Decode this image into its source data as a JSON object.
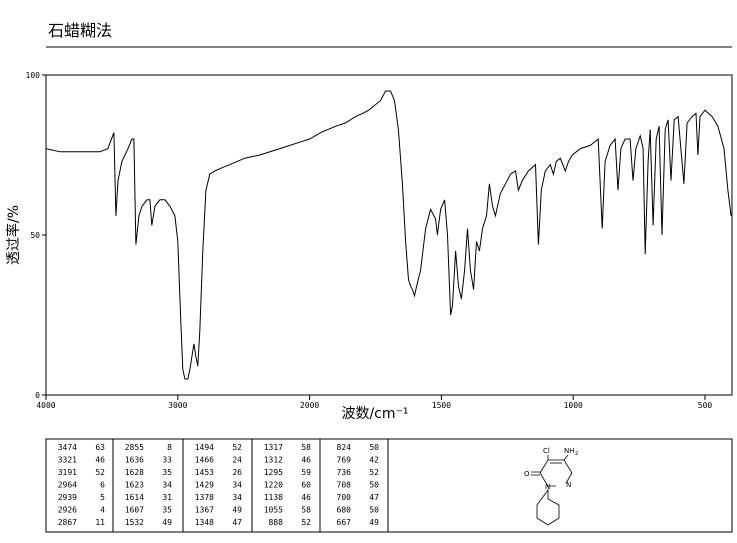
{
  "title": "石蜡糊法",
  "chart_data": {
    "type": "line",
    "x_label": "波数/cm⁻¹",
    "y_label": "透过率/%",
    "xlim": [
      4000,
      400
    ],
    "ylim": [
      0,
      100
    ],
    "xticks": [
      4000,
      3000,
      2000,
      1500,
      1000,
      500
    ],
    "yticks": [
      0,
      50,
      100
    ],
    "color": "#000000",
    "x": [
      4000,
      3894,
      3742,
      3591,
      3530,
      3485,
      3470,
      3454,
      3424,
      3378,
      3348,
      3333,
      3318,
      3295,
      3272,
      3234,
      3212,
      3197,
      3174,
      3136,
      3098,
      3060,
      3022,
      3000,
      2977,
      2962,
      2946,
      2924,
      2908,
      2893,
      2878,
      2863,
      2848,
      2833,
      2810,
      2787,
      2757,
      2719,
      2666,
      2605,
      2492,
      2378,
      2226,
      2075,
      2000,
      1958,
      1901,
      1864,
      1826,
      1799,
      1776,
      1761,
      1731,
      1712,
      1693,
      1678,
      1663,
      1648,
      1636,
      1625,
      1617,
      1610,
      1602,
      1594,
      1579,
      1560,
      1541,
      1522,
      1515,
      1503,
      1488,
      1477,
      1465,
      1458,
      1446,
      1435,
      1424,
      1412,
      1401,
      1390,
      1378,
      1367,
      1356,
      1344,
      1329,
      1318,
      1306,
      1295,
      1276,
      1257,
      1238,
      1219,
      1208,
      1193,
      1170,
      1143,
      1132,
      1121,
      1106,
      1087,
      1075,
      1064,
      1049,
      1030,
      1018,
      1003,
      973,
      935,
      905,
      890,
      879,
      860,
      841,
      830,
      819,
      803,
      784,
      773,
      762,
      746,
      735,
      727,
      716,
      708,
      697,
      685,
      674,
      663,
      651,
      640,
      629,
      617,
      602,
      580,
      568,
      549,
      534,
      527,
      519,
      500,
      473,
      451,
      428,
      413,
      401
    ],
    "values": [
      77,
      76,
      76,
      76,
      77,
      82,
      56,
      67,
      73,
      77,
      80,
      80,
      47,
      56,
      59,
      61,
      61,
      53,
      59,
      61,
      61,
      59,
      56,
      48,
      23,
      8,
      5,
      5,
      8,
      12,
      16,
      12,
      9,
      20,
      45,
      64,
      69,
      70,
      71,
      72,
      74,
      75,
      77,
      79,
      80,
      82,
      84,
      85,
      87,
      88,
      89,
      90,
      92,
      95,
      95,
      92,
      83,
      66,
      48,
      36,
      34,
      33,
      31,
      34,
      39,
      52,
      58,
      55,
      50,
      58,
      61,
      50,
      25,
      28,
      45,
      34,
      30,
      39,
      52,
      39,
      33,
      48,
      45,
      52,
      56,
      66,
      59,
      56,
      63,
      66,
      69,
      70,
      64,
      67,
      70,
      72,
      47,
      64,
      70,
      72,
      69,
      73,
      74,
      70,
      73,
      75,
      77,
      78,
      80,
      52,
      73,
      78,
      80,
      64,
      77,
      80,
      80,
      67,
      77,
      81,
      77,
      44,
      73,
      83,
      53,
      80,
      84,
      50,
      83,
      86,
      67,
      86,
      87,
      66,
      85,
      87,
      88,
      75,
      87,
      89,
      87,
      84,
      77,
      64,
      56
    ]
  },
  "table": {
    "columns": [
      [
        [
          3474,
          63
        ],
        [
          3321,
          46
        ],
        [
          3191,
          52
        ],
        [
          2964,
          6
        ],
        [
          2939,
          5
        ],
        [
          2926,
          4
        ],
        [
          2867,
          11
        ]
      ],
      [
        [
          2855,
          8
        ],
        [
          1636,
          33
        ],
        [
          1628,
          35
        ],
        [
          1623,
          34
        ],
        [
          1614,
          31
        ],
        [
          1607,
          35
        ],
        [
          1532,
          49
        ]
      ],
      [
        [
          1494,
          52
        ],
        [
          1466,
          24
        ],
        [
          1453,
          26
        ],
        [
          1429,
          34
        ],
        [
          1378,
          34
        ],
        [
          1367,
          49
        ],
        [
          1348,
          47
        ]
      ],
      [
        [
          1317,
          58
        ],
        [
          1312,
          46
        ],
        [
          1295,
          59
        ],
        [
          1220,
          60
        ],
        [
          1138,
          46
        ],
        [
          1055,
          58
        ],
        [
          888,
          52
        ]
      ],
      [
        [
          824,
          50
        ],
        [
          769,
          42
        ],
        [
          736,
          52
        ],
        [
          708,
          50
        ],
        [
          700,
          47
        ],
        [
          680,
          50
        ],
        [
          667,
          49
        ]
      ]
    ]
  },
  "structure": {
    "atoms": [
      "Cl",
      "NH",
      "2",
      "O",
      "N",
      "N"
    ]
  }
}
